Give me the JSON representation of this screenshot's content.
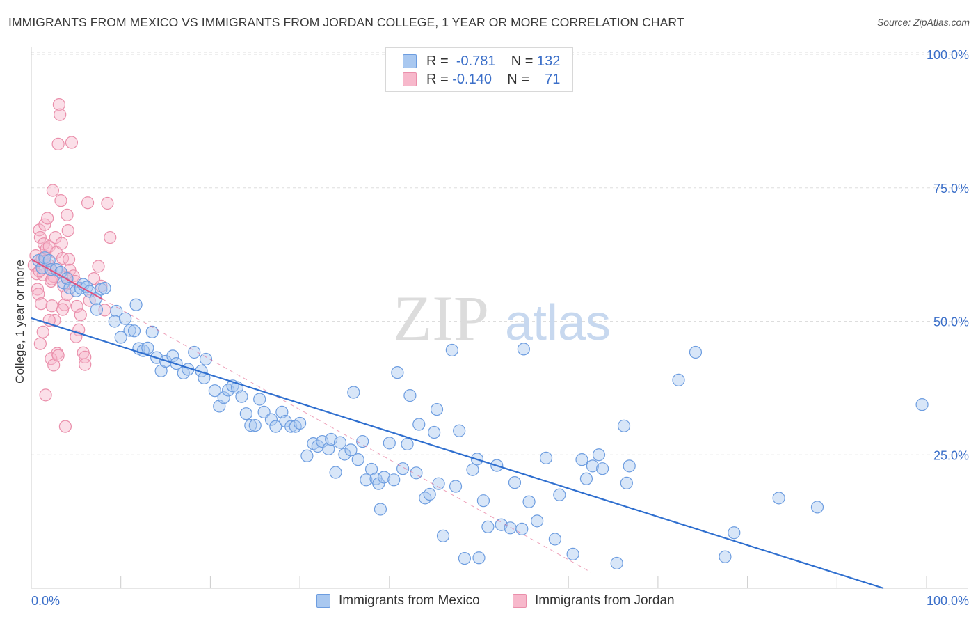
{
  "title": "IMMIGRANTS FROM MEXICO VS IMMIGRANTS FROM JORDAN COLLEGE, 1 YEAR OR MORE CORRELATION CHART",
  "source": "Source: ZipAtlas.com",
  "watermark": {
    "zip": "ZIP",
    "atlas": "atlas"
  },
  "legend": {
    "rows": [
      {
        "r_label": "R =",
        "r_value": "-0.781",
        "n_label": "N =",
        "n_value": "132"
      },
      {
        "r_label": "R =",
        "r_value": "-0.140",
        "n_label": "N =",
        "n_value": "71"
      }
    ]
  },
  "bottom_legend": [
    "Immigrants from Mexico",
    "Immigrants from Jordan"
  ],
  "colors": {
    "mexico_fill": "#a9c8f0",
    "mexico_stroke": "#6d9de0",
    "mexico_line": "#2f6fcf",
    "jordan_fill": "#f7b8cb",
    "jordan_stroke": "#ea8fab",
    "jordan_line": "#e0507e",
    "axis_text": "#3b6fc9",
    "grid": "#dddddd"
  },
  "chart_data": {
    "type": "scatter",
    "title": "IMMIGRANTS FROM MEXICO VS IMMIGRANTS FROM JORDAN COLLEGE, 1 YEAR OR MORE CORRELATION CHART",
    "xlabel": "",
    "ylabel": "College, 1 year or more",
    "xlim": [
      0,
      100
    ],
    "ylim": [
      0,
      100
    ],
    "x_tick_labels": [
      "0.0%",
      "100.0%"
    ],
    "y_ticks": [
      25,
      50,
      75,
      100
    ],
    "y_tick_labels": [
      "25.0%",
      "50.0%",
      "75.0%",
      "100.0%"
    ],
    "grid": true,
    "legend_placement": "top-center",
    "series": [
      {
        "name": "Immigrants from Mexico",
        "r": -0.781,
        "n": 132,
        "trend": [
          [
            0,
            50.6
          ],
          [
            95.2,
            0
          ]
        ],
        "points": [
          [
            0.8,
            61.4
          ],
          [
            1.2,
            60.0
          ],
          [
            1.5,
            61.9
          ],
          [
            2.0,
            61.4
          ],
          [
            2.2,
            59.7
          ],
          [
            2.8,
            59.7
          ],
          [
            3.3,
            59.2
          ],
          [
            3.6,
            57.2
          ],
          [
            4.0,
            58.0
          ],
          [
            4.3,
            56.2
          ],
          [
            5.0,
            55.7
          ],
          [
            5.5,
            56.2
          ],
          [
            5.8,
            56.9
          ],
          [
            6.2,
            56.4
          ],
          [
            6.5,
            55.6
          ],
          [
            7.2,
            54.2
          ],
          [
            7.3,
            52.2
          ],
          [
            7.8,
            56.0
          ],
          [
            8.2,
            56.2
          ],
          [
            9.5,
            51.9
          ],
          [
            9.3,
            50.0
          ],
          [
            10.5,
            50.5
          ],
          [
            10.0,
            47.0
          ],
          [
            11.0,
            48.3
          ],
          [
            11.5,
            48.2
          ],
          [
            11.7,
            53.1
          ],
          [
            12.0,
            44.9
          ],
          [
            12.5,
            44.5
          ],
          [
            13.0,
            45.0
          ],
          [
            13.5,
            48.0
          ],
          [
            14.0,
            43.2
          ],
          [
            14.5,
            40.7
          ],
          [
            15.0,
            42.5
          ],
          [
            15.8,
            43.5
          ],
          [
            16.2,
            42.1
          ],
          [
            17.0,
            40.3
          ],
          [
            17.5,
            41.0
          ],
          [
            18.2,
            44.2
          ],
          [
            19.0,
            40.7
          ],
          [
            19.3,
            39.4
          ],
          [
            19.5,
            42.9
          ],
          [
            20.5,
            37.0
          ],
          [
            21.0,
            34.1
          ],
          [
            21.5,
            35.7
          ],
          [
            22.0,
            37.1
          ],
          [
            22.5,
            37.9
          ],
          [
            23.0,
            37.6
          ],
          [
            23.5,
            35.9
          ],
          [
            24.0,
            32.7
          ],
          [
            24.5,
            30.5
          ],
          [
            25.0,
            30.5
          ],
          [
            25.5,
            35.4
          ],
          [
            26.0,
            33.0
          ],
          [
            26.8,
            31.6
          ],
          [
            27.3,
            30.3
          ],
          [
            28.0,
            33.0
          ],
          [
            28.4,
            31.3
          ],
          [
            29.0,
            30.3
          ],
          [
            29.5,
            30.3
          ],
          [
            30.0,
            30.9
          ],
          [
            30.8,
            24.8
          ],
          [
            31.5,
            27.1
          ],
          [
            32.0,
            26.6
          ],
          [
            32.5,
            27.5
          ],
          [
            33.2,
            26.1
          ],
          [
            33.5,
            27.9
          ],
          [
            34.0,
            21.7
          ],
          [
            34.5,
            27.3
          ],
          [
            35.0,
            25.1
          ],
          [
            35.7,
            25.9
          ],
          [
            36.0,
            36.7
          ],
          [
            36.5,
            24.1
          ],
          [
            37.0,
            27.5
          ],
          [
            37.4,
            20.3
          ],
          [
            38.0,
            22.3
          ],
          [
            38.5,
            20.5
          ],
          [
            38.8,
            19.6
          ],
          [
            39.0,
            14.8
          ],
          [
            39.4,
            20.8
          ],
          [
            40.0,
            27.2
          ],
          [
            40.5,
            20.3
          ],
          [
            40.9,
            40.4
          ],
          [
            41.5,
            22.4
          ],
          [
            42.0,
            27.0
          ],
          [
            42.3,
            36.1
          ],
          [
            43.0,
            21.6
          ],
          [
            43.3,
            30.7
          ],
          [
            44.0,
            16.9
          ],
          [
            44.5,
            17.6
          ],
          [
            45.0,
            29.2
          ],
          [
            45.3,
            33.5
          ],
          [
            45.5,
            19.6
          ],
          [
            46.0,
            9.8
          ],
          [
            47.0,
            44.6
          ],
          [
            47.4,
            19.1
          ],
          [
            47.8,
            29.5
          ],
          [
            48.4,
            5.6
          ],
          [
            49.3,
            22.2
          ],
          [
            49.8,
            24.2
          ],
          [
            50.0,
            5.7
          ],
          [
            50.5,
            16.4
          ],
          [
            51.0,
            11.5
          ],
          [
            52.0,
            23.0
          ],
          [
            52.5,
            11.9
          ],
          [
            53.5,
            11.3
          ],
          [
            54.0,
            19.8
          ],
          [
            54.8,
            11.1
          ],
          [
            55.0,
            44.8
          ],
          [
            55.6,
            16.2
          ],
          [
            56.5,
            12.6
          ],
          [
            57.5,
            24.4
          ],
          [
            58.5,
            9.2
          ],
          [
            59.0,
            17.5
          ],
          [
            60.5,
            6.4
          ],
          [
            61.5,
            24.1
          ],
          [
            62.0,
            20.5
          ],
          [
            62.7,
            22.9
          ],
          [
            63.4,
            25.0
          ],
          [
            63.8,
            22.4
          ],
          [
            65.4,
            4.7
          ],
          [
            66.2,
            30.4
          ],
          [
            66.5,
            19.7
          ],
          [
            66.8,
            22.9
          ],
          [
            72.3,
            39.0
          ],
          [
            74.2,
            44.2
          ],
          [
            77.5,
            5.9
          ],
          [
            78.5,
            10.4
          ],
          [
            83.5,
            16.9
          ],
          [
            87.8,
            15.2
          ],
          [
            99.5,
            34.4
          ]
        ]
      },
      {
        "name": "Immigrants from Jordan",
        "r": -0.14,
        "n": 71,
        "trend": [
          [
            0,
            61.6
          ],
          [
            8.0,
            54.1
          ]
        ],
        "points": [
          [
            0.3,
            60.5
          ],
          [
            0.5,
            62.3
          ],
          [
            0.6,
            58.9
          ],
          [
            0.7,
            56.0
          ],
          [
            0.8,
            55.1
          ],
          [
            0.9,
            67.1
          ],
          [
            1.0,
            65.7
          ],
          [
            1.1,
            53.3
          ],
          [
            1.2,
            61.7
          ],
          [
            1.3,
            58.7
          ],
          [
            1.4,
            64.5
          ],
          [
            1.5,
            68.1
          ],
          [
            1.6,
            62.2
          ],
          [
            1.7,
            63.6
          ],
          [
            1.8,
            69.3
          ],
          [
            1.9,
            60.6
          ],
          [
            2.0,
            64.0
          ],
          [
            2.1,
            59.7
          ],
          [
            2.2,
            57.5
          ],
          [
            2.3,
            52.9
          ],
          [
            2.4,
            74.5
          ],
          [
            2.5,
            58.4
          ],
          [
            2.6,
            50.2
          ],
          [
            2.7,
            65.7
          ],
          [
            2.8,
            62.9
          ],
          [
            2.9,
            44.0
          ],
          [
            3.0,
            83.2
          ],
          [
            3.1,
            90.6
          ],
          [
            3.2,
            88.7
          ],
          [
            3.3,
            72.6
          ],
          [
            3.4,
            64.6
          ],
          [
            3.5,
            61.8
          ],
          [
            3.6,
            56.6
          ],
          [
            3.7,
            53.1
          ],
          [
            3.8,
            30.3
          ],
          [
            3.9,
            58.3
          ],
          [
            4.0,
            69.9
          ],
          [
            4.1,
            67.0
          ],
          [
            4.2,
            61.6
          ],
          [
            4.3,
            59.6
          ],
          [
            4.5,
            83.5
          ],
          [
            4.7,
            58.5
          ],
          [
            4.9,
            57.5
          ],
          [
            5.1,
            52.8
          ],
          [
            5.3,
            48.4
          ],
          [
            5.5,
            51.2
          ],
          [
            5.8,
            44.1
          ],
          [
            6.0,
            43.3
          ],
          [
            6.3,
            72.2
          ],
          [
            6.5,
            53.9
          ],
          [
            7.0,
            58.0
          ],
          [
            7.5,
            60.3
          ],
          [
            7.8,
            56.6
          ],
          [
            8.2,
            52.1
          ],
          [
            8.5,
            72.1
          ],
          [
            8.8,
            65.7
          ],
          [
            1.0,
            45.8
          ],
          [
            1.3,
            48.0
          ],
          [
            1.6,
            36.2
          ],
          [
            2.0,
            50.2
          ],
          [
            2.2,
            43.0
          ],
          [
            2.5,
            41.8
          ],
          [
            3.0,
            43.6
          ],
          [
            3.5,
            52.2
          ],
          [
            4.0,
            55.0
          ],
          [
            5.0,
            47.1
          ],
          [
            6.0,
            41.9
          ],
          [
            2.8,
            60.0
          ],
          [
            1.5,
            61.3
          ],
          [
            0.9,
            59.4
          ],
          [
            2.3,
            57.9
          ]
        ]
      }
    ]
  }
}
